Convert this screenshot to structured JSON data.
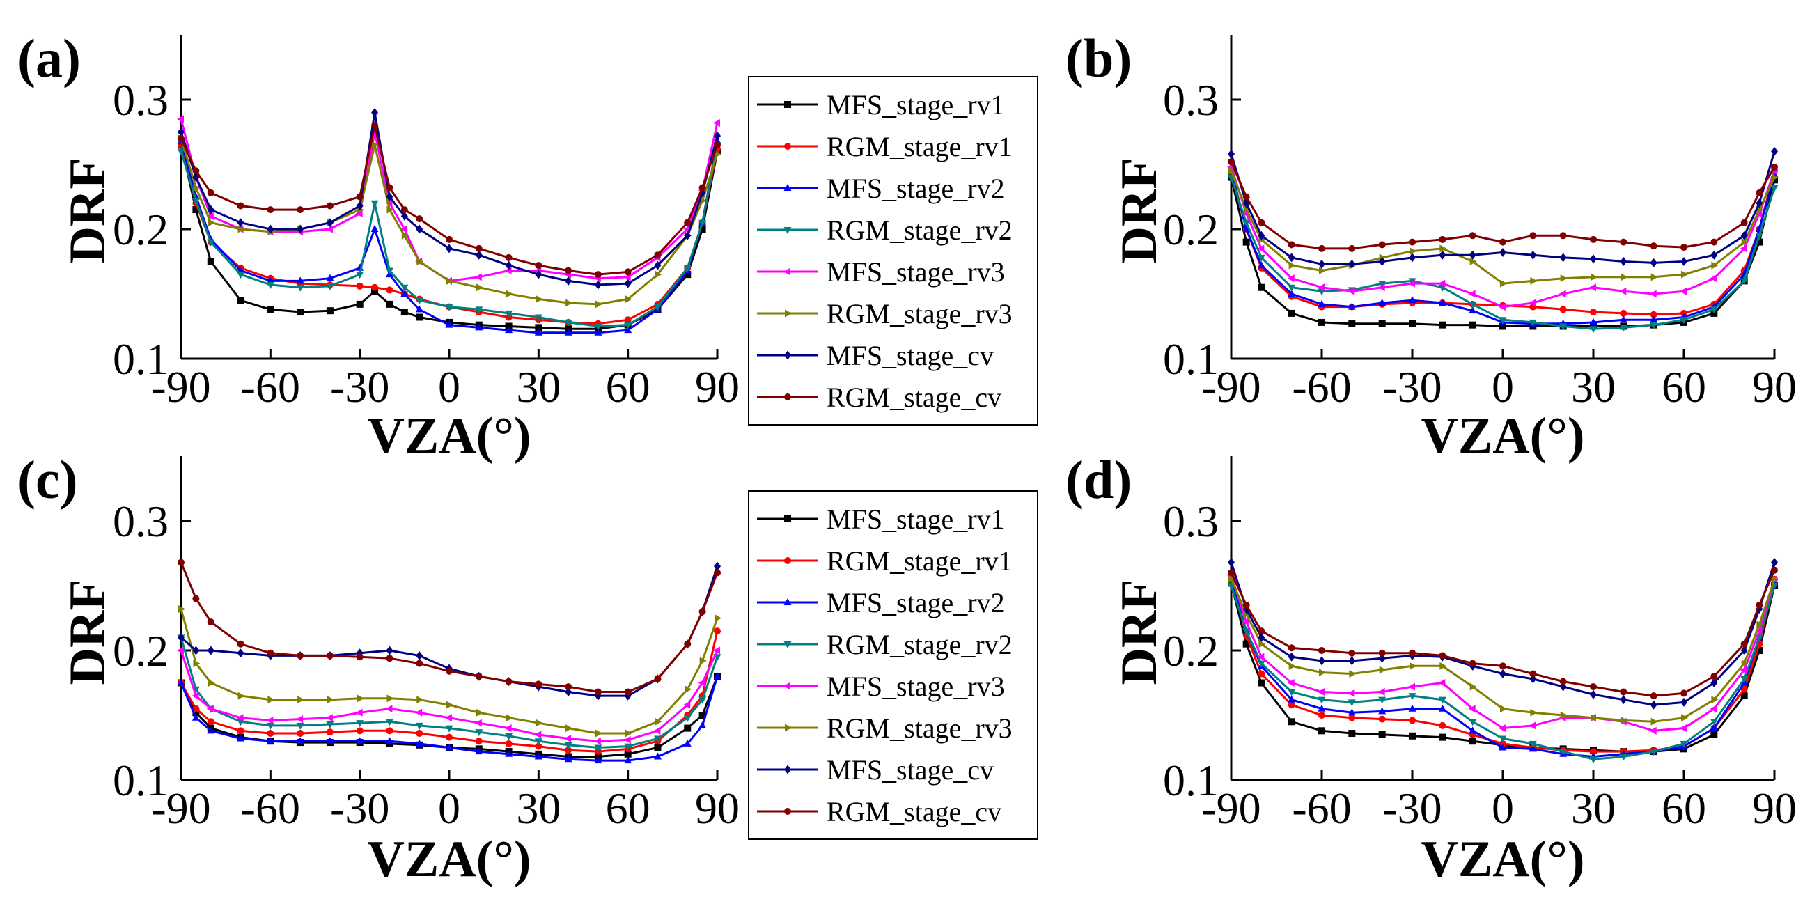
{
  "colors": {
    "MFS_stage_rv1": "#000000",
    "RGM_stage_rv1": "#ff0000",
    "MFS_stage_rv2": "#0000ff",
    "RGM_stage_rv2": "#008080",
    "MFS_stage_rv3": "#ff00ff",
    "RGM_stage_rv3": "#808000",
    "MFS_stage_cv": "#000080",
    "RGM_stage_cv": "#800000"
  },
  "legend_top": [
    "MFS_stage_rv1",
    "RGM_stage_rv1",
    "MFS_stage_rv2",
    "RGM_stage_rv2",
    "MFS_stage_rv3",
    "RGM_stage_rv3",
    "MFS_stage_cv",
    "RGM_stage_cv"
  ],
  "legend_bottom": [
    "MFS_stage_rv1",
    "RGM_stage_rv1",
    "MFS_stage_rv2",
    "RGM_stage_rv2",
    "MFS_stage_rv3",
    "RGM_stage_rv3",
    "MFS_stage_cv",
    "RGM_stage_cv"
  ],
  "chart_data": [
    {
      "panel": "(a)",
      "type": "line",
      "xlabel": "VZA(°)",
      "ylabel": "DRF",
      "xlim": [
        -90,
        90
      ],
      "ylim": [
        0.1,
        0.35
      ],
      "xticks": [
        "-90",
        "-60",
        "-30",
        "0",
        "30",
        "60",
        "90"
      ],
      "yticks": [
        "0.1",
        "0.2",
        "0.3"
      ],
      "x": [
        -90,
        -85,
        -80,
        -70,
        -60,
        -50,
        -40,
        -30,
        -25,
        -20,
        -15,
        -10,
        0,
        10,
        20,
        30,
        40,
        50,
        60,
        70,
        80,
        85,
        90
      ],
      "series": [
        {
          "name": "MFS_stage_rv1",
          "values": [
            0.265,
            0.215,
            0.175,
            0.145,
            0.138,
            0.136,
            0.137,
            0.142,
            0.152,
            0.142,
            0.136,
            0.132,
            0.128,
            0.126,
            0.125,
            0.124,
            0.123,
            0.123,
            0.126,
            0.138,
            0.165,
            0.2,
            0.26
          ]
        },
        {
          "name": "RGM_stage_rv1",
          "values": [
            0.265,
            0.22,
            0.19,
            0.17,
            0.162,
            0.158,
            0.157,
            0.156,
            0.155,
            0.153,
            0.15,
            0.146,
            0.14,
            0.136,
            0.132,
            0.13,
            0.128,
            0.127,
            0.13,
            0.142,
            0.17,
            0.205,
            0.262
          ]
        },
        {
          "name": "MFS_stage_rv2",
          "values": [
            0.268,
            0.225,
            0.192,
            0.168,
            0.16,
            0.16,
            0.162,
            0.17,
            0.2,
            0.165,
            0.15,
            0.138,
            0.126,
            0.124,
            0.122,
            0.12,
            0.12,
            0.12,
            0.122,
            0.138,
            0.168,
            0.205,
            0.268
          ]
        },
        {
          "name": "RGM_stage_rv2",
          "values": [
            0.26,
            0.222,
            0.19,
            0.165,
            0.157,
            0.155,
            0.156,
            0.165,
            0.22,
            0.168,
            0.155,
            0.145,
            0.14,
            0.138,
            0.135,
            0.132,
            0.128,
            0.125,
            0.126,
            0.14,
            0.17,
            0.205,
            0.265
          ]
        },
        {
          "name": "MFS_stage_rv3",
          "values": [
            0.285,
            0.24,
            0.21,
            0.2,
            0.198,
            0.198,
            0.2,
            0.212,
            0.275,
            0.22,
            0.2,
            0.175,
            0.16,
            0.163,
            0.168,
            0.168,
            0.165,
            0.162,
            0.163,
            0.178,
            0.2,
            0.23,
            0.282
          ]
        },
        {
          "name": "RGM_stage_rv3",
          "values": [
            0.27,
            0.232,
            0.205,
            0.2,
            0.198,
            0.2,
            0.205,
            0.215,
            0.265,
            0.215,
            0.195,
            0.175,
            0.16,
            0.155,
            0.15,
            0.146,
            0.143,
            0.142,
            0.146,
            0.165,
            0.195,
            0.222,
            0.258
          ]
        },
        {
          "name": "MFS_stage_cv",
          "values": [
            0.275,
            0.24,
            0.215,
            0.205,
            0.2,
            0.2,
            0.205,
            0.218,
            0.29,
            0.225,
            0.21,
            0.2,
            0.185,
            0.18,
            0.172,
            0.165,
            0.16,
            0.157,
            0.158,
            0.172,
            0.195,
            0.228,
            0.272
          ]
        },
        {
          "name": "RGM_stage_cv",
          "values": [
            0.27,
            0.245,
            0.228,
            0.218,
            0.215,
            0.215,
            0.218,
            0.225,
            0.28,
            0.232,
            0.215,
            0.208,
            0.192,
            0.185,
            0.178,
            0.172,
            0.168,
            0.165,
            0.167,
            0.18,
            0.205,
            0.232,
            0.265
          ]
        }
      ]
    },
    {
      "panel": "(b)",
      "type": "line",
      "xlabel": "VZA(°)",
      "ylabel": "DRF",
      "xlim": [
        -90,
        90
      ],
      "ylim": [
        0.1,
        0.35
      ],
      "xticks": [
        "-90",
        "-60",
        "-30",
        "0",
        "30",
        "60",
        "90"
      ],
      "yticks": [
        "0.1",
        "0.2",
        "0.3"
      ],
      "x": [
        -90,
        -85,
        -80,
        -70,
        -60,
        -50,
        -40,
        -30,
        -20,
        -10,
        0,
        10,
        20,
        30,
        40,
        50,
        60,
        70,
        80,
        85,
        90
      ],
      "series": [
        {
          "name": "MFS_stage_rv1",
          "values": [
            0.24,
            0.19,
            0.155,
            0.135,
            0.128,
            0.127,
            0.127,
            0.127,
            0.126,
            0.126,
            0.125,
            0.125,
            0.125,
            0.125,
            0.125,
            0.126,
            0.128,
            0.135,
            0.16,
            0.19,
            0.238
          ]
        },
        {
          "name": "RGM_stage_rv1",
          "values": [
            0.245,
            0.2,
            0.17,
            0.148,
            0.14,
            0.14,
            0.142,
            0.143,
            0.143,
            0.142,
            0.141,
            0.14,
            0.138,
            0.136,
            0.135,
            0.134,
            0.135,
            0.142,
            0.168,
            0.2,
            0.245
          ]
        },
        {
          "name": "MFS_stage_rv2",
          "values": [
            0.245,
            0.2,
            0.172,
            0.15,
            0.142,
            0.14,
            0.143,
            0.145,
            0.143,
            0.137,
            0.128,
            0.127,
            0.127,
            0.128,
            0.13,
            0.13,
            0.132,
            0.14,
            0.165,
            0.2,
            0.242
          ]
        },
        {
          "name": "RGM_stage_rv2",
          "values": [
            0.24,
            0.205,
            0.178,
            0.155,
            0.152,
            0.153,
            0.158,
            0.16,
            0.155,
            0.142,
            0.13,
            0.128,
            0.125,
            0.123,
            0.124,
            0.126,
            0.13,
            0.138,
            0.16,
            0.195,
            0.232
          ]
        },
        {
          "name": "MFS_stage_rv3",
          "values": [
            0.248,
            0.212,
            0.185,
            0.162,
            0.155,
            0.152,
            0.155,
            0.158,
            0.158,
            0.15,
            0.14,
            0.143,
            0.15,
            0.155,
            0.152,
            0.15,
            0.152,
            0.162,
            0.185,
            0.212,
            0.245
          ]
        },
        {
          "name": "RGM_stage_rv3",
          "values": [
            0.245,
            0.215,
            0.192,
            0.172,
            0.168,
            0.172,
            0.178,
            0.183,
            0.185,
            0.175,
            0.158,
            0.16,
            0.162,
            0.163,
            0.163,
            0.163,
            0.165,
            0.172,
            0.19,
            0.215,
            0.24
          ]
        },
        {
          "name": "MFS_stage_cv",
          "values": [
            0.258,
            0.22,
            0.195,
            0.178,
            0.173,
            0.173,
            0.175,
            0.178,
            0.18,
            0.18,
            0.182,
            0.18,
            0.178,
            0.177,
            0.175,
            0.174,
            0.175,
            0.18,
            0.195,
            0.22,
            0.26
          ]
        },
        {
          "name": "RGM_stage_cv",
          "values": [
            0.252,
            0.225,
            0.205,
            0.188,
            0.185,
            0.185,
            0.188,
            0.19,
            0.192,
            0.195,
            0.19,
            0.195,
            0.195,
            0.192,
            0.19,
            0.187,
            0.186,
            0.19,
            0.205,
            0.228,
            0.248
          ]
        }
      ]
    },
    {
      "panel": "(c)",
      "type": "line",
      "xlabel": "VZA(°)",
      "ylabel": "DRF",
      "xlim": [
        -90,
        90
      ],
      "ylim": [
        0.1,
        0.35
      ],
      "xticks": [
        "-90",
        "-60",
        "-30",
        "0",
        "30",
        "60",
        "90"
      ],
      "yticks": [
        "0.1",
        "0.2",
        "0.3"
      ],
      "x": [
        -90,
        -85,
        -80,
        -70,
        -60,
        -50,
        -40,
        -30,
        -20,
        -10,
        0,
        10,
        20,
        30,
        40,
        50,
        60,
        70,
        80,
        85,
        90
      ],
      "series": [
        {
          "name": "MFS_stage_rv1",
          "values": [
            0.175,
            0.152,
            0.14,
            0.133,
            0.13,
            0.129,
            0.129,
            0.129,
            0.128,
            0.127,
            0.125,
            0.124,
            0.122,
            0.12,
            0.118,
            0.118,
            0.12,
            0.125,
            0.14,
            0.15,
            0.18
          ]
        },
        {
          "name": "RGM_stage_rv1",
          "values": [
            0.175,
            0.155,
            0.145,
            0.138,
            0.136,
            0.136,
            0.137,
            0.138,
            0.138,
            0.136,
            0.133,
            0.13,
            0.128,
            0.126,
            0.123,
            0.122,
            0.124,
            0.13,
            0.15,
            0.165,
            0.215
          ]
        },
        {
          "name": "MFS_stage_rv2",
          "values": [
            0.175,
            0.148,
            0.138,
            0.132,
            0.13,
            0.13,
            0.13,
            0.13,
            0.13,
            0.128,
            0.125,
            0.122,
            0.12,
            0.118,
            0.116,
            0.115,
            0.115,
            0.118,
            0.128,
            0.142,
            0.18
          ]
        },
        {
          "name": "RGM_stage_rv2",
          "values": [
            0.21,
            0.17,
            0.155,
            0.145,
            0.142,
            0.142,
            0.143,
            0.144,
            0.145,
            0.142,
            0.14,
            0.137,
            0.134,
            0.13,
            0.127,
            0.125,
            0.126,
            0.132,
            0.148,
            0.162,
            0.195
          ]
        },
        {
          "name": "MFS_stage_rv3",
          "values": [
            0.2,
            0.165,
            0.155,
            0.148,
            0.146,
            0.147,
            0.148,
            0.152,
            0.155,
            0.152,
            0.148,
            0.144,
            0.14,
            0.135,
            0.132,
            0.13,
            0.131,
            0.138,
            0.158,
            0.175,
            0.2
          ]
        },
        {
          "name": "RGM_stage_rv3",
          "values": [
            0.232,
            0.19,
            0.175,
            0.165,
            0.162,
            0.162,
            0.162,
            0.163,
            0.163,
            0.162,
            0.158,
            0.152,
            0.148,
            0.144,
            0.14,
            0.136,
            0.136,
            0.145,
            0.17,
            0.192,
            0.225
          ]
        },
        {
          "name": "MFS_stage_cv",
          "values": [
            0.21,
            0.2,
            0.2,
            0.198,
            0.196,
            0.196,
            0.196,
            0.198,
            0.2,
            0.196,
            0.186,
            0.18,
            0.176,
            0.172,
            0.168,
            0.165,
            0.165,
            0.178,
            0.205,
            0.23,
            0.265
          ]
        },
        {
          "name": "RGM_stage_cv",
          "values": [
            0.268,
            0.24,
            0.222,
            0.205,
            0.198,
            0.196,
            0.196,
            0.195,
            0.194,
            0.19,
            0.184,
            0.18,
            0.176,
            0.174,
            0.172,
            0.168,
            0.168,
            0.178,
            0.205,
            0.23,
            0.26
          ]
        }
      ]
    },
    {
      "panel": "(d)",
      "type": "line",
      "xlabel": "VZA(°)",
      "ylabel": "DRF",
      "xlim": [
        -90,
        90
      ],
      "ylim": [
        0.1,
        0.35
      ],
      "xticks": [
        "-90",
        "-60",
        "-30",
        "0",
        "30",
        "60",
        "90"
      ],
      "yticks": [
        "0.1",
        "0.2",
        "0.3"
      ],
      "x": [
        -90,
        -85,
        -80,
        -70,
        -60,
        -50,
        -40,
        -30,
        -20,
        -10,
        0,
        10,
        20,
        30,
        40,
        50,
        60,
        70,
        80,
        85,
        90
      ],
      "series": [
        {
          "name": "MFS_stage_rv1",
          "values": [
            0.252,
            0.205,
            0.175,
            0.145,
            0.138,
            0.136,
            0.135,
            0.134,
            0.133,
            0.13,
            0.127,
            0.125,
            0.124,
            0.123,
            0.122,
            0.122,
            0.124,
            0.135,
            0.165,
            0.2,
            0.25
          ]
        },
        {
          "name": "RGM_stage_rv1",
          "values": [
            0.258,
            0.212,
            0.182,
            0.158,
            0.15,
            0.148,
            0.147,
            0.146,
            0.142,
            0.135,
            0.128,
            0.125,
            0.123,
            0.122,
            0.122,
            0.123,
            0.126,
            0.14,
            0.17,
            0.205,
            0.255
          ]
        },
        {
          "name": "MFS_stage_rv2",
          "values": [
            0.255,
            0.215,
            0.188,
            0.162,
            0.155,
            0.152,
            0.153,
            0.155,
            0.155,
            0.138,
            0.125,
            0.124,
            0.12,
            0.118,
            0.12,
            0.122,
            0.126,
            0.14,
            0.175,
            0.21,
            0.252
          ]
        },
        {
          "name": "RGM_stage_rv2",
          "values": [
            0.25,
            0.215,
            0.19,
            0.168,
            0.162,
            0.16,
            0.162,
            0.165,
            0.162,
            0.145,
            0.132,
            0.128,
            0.122,
            0.116,
            0.118,
            0.122,
            0.128,
            0.145,
            0.178,
            0.21,
            0.25
          ]
        },
        {
          "name": "MFS_stage_rv3",
          "values": [
            0.258,
            0.222,
            0.195,
            0.175,
            0.168,
            0.167,
            0.168,
            0.172,
            0.175,
            0.155,
            0.14,
            0.142,
            0.148,
            0.148,
            0.145,
            0.138,
            0.14,
            0.155,
            0.185,
            0.215,
            0.255
          ]
        },
        {
          "name": "RGM_stage_rv3",
          "values": [
            0.255,
            0.228,
            0.205,
            0.188,
            0.183,
            0.182,
            0.185,
            0.188,
            0.188,
            0.172,
            0.155,
            0.152,
            0.15,
            0.148,
            0.146,
            0.145,
            0.148,
            0.162,
            0.19,
            0.22,
            0.255
          ]
        },
        {
          "name": "MFS_stage_cv",
          "values": [
            0.268,
            0.232,
            0.21,
            0.195,
            0.192,
            0.192,
            0.194,
            0.196,
            0.195,
            0.188,
            0.182,
            0.178,
            0.172,
            0.166,
            0.162,
            0.158,
            0.16,
            0.175,
            0.2,
            0.232,
            0.268
          ]
        },
        {
          "name": "RGM_stage_cv",
          "values": [
            0.26,
            0.235,
            0.215,
            0.202,
            0.2,
            0.198,
            0.198,
            0.198,
            0.196,
            0.19,
            0.188,
            0.182,
            0.176,
            0.172,
            0.168,
            0.165,
            0.167,
            0.18,
            0.205,
            0.235,
            0.262
          ]
        }
      ]
    }
  ]
}
